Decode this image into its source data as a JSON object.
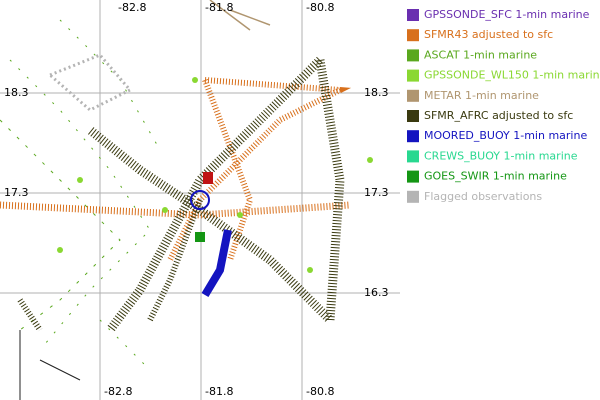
{
  "map": {
    "lon_labels": [
      "-82.8",
      "-81.8",
      "-80.8"
    ],
    "lat_labels": [
      "18.3",
      "17.3",
      "16.3"
    ],
    "legend": [
      {
        "label": "GPSSONDE_SFC 1-min marine",
        "color": "#6a2fb0"
      },
      {
        "label": "SFMR43 adjusted to sfc",
        "color": "#d8701c"
      },
      {
        "label": "ASCAT 1-min marine",
        "color": "#5aa81e"
      },
      {
        "label": "GPSSONDE_WL150 1-min marine",
        "color": "#8ad832"
      },
      {
        "label": "METAR 1-min marine",
        "color": "#b09670"
      },
      {
        "label": "SFMR_AFRC adjusted to sfc",
        "color": "#3a3a10"
      },
      {
        "label": "MOORED_BUOY 1-min marine",
        "color": "#1414c0"
      },
      {
        "label": "CREWS_BUOY 1-min marine",
        "color": "#28d890"
      },
      {
        "label": "GOES_SWIR 1-min marine",
        "color": "#149614"
      },
      {
        "label": "Flagged observations",
        "color": "#b4b4b4"
      }
    ]
  }
}
